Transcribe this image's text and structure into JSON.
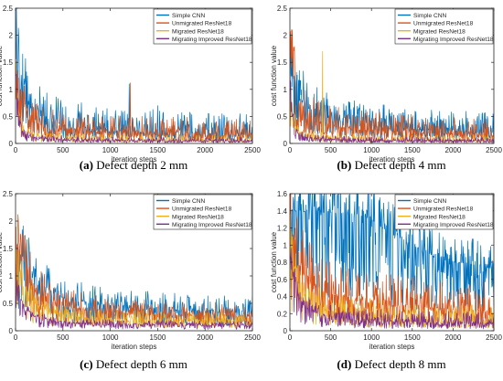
{
  "colors": {
    "simple_cnn": "#0072BD",
    "unmigrated": "#D95319",
    "migrated": "#EDB120",
    "improved": "#7E2F8E"
  },
  "chart_data": [
    {
      "type": "line",
      "panel": "a",
      "caption_label": "(a)",
      "caption_text": " Defect depth 2 mm",
      "xlabel": "iteration steps",
      "ylabel": "cost function value",
      "xlim": [
        0,
        2500
      ],
      "ylim": [
        0,
        2.5
      ],
      "xticks": [
        0,
        500,
        1000,
        1500,
        2000,
        2500
      ],
      "yticks": [
        0,
        0.5,
        1,
        1.5,
        2,
        2.5
      ],
      "ytick_labels": [
        "0",
        "0.5",
        "1",
        "1.5",
        "2",
        "2.5"
      ],
      "legend": "top-right",
      "series": [
        {
          "name": "Simple CNN",
          "values": [
            [
              0,
              1.6
            ],
            [
              50,
              1.2
            ],
            [
              100,
              0.9
            ],
            [
              200,
              0.6
            ],
            [
              300,
              0.45
            ],
            [
              500,
              0.35
            ],
            [
              800,
              0.28
            ],
            [
              1200,
              0.22
            ],
            [
              1600,
              0.2
            ],
            [
              2000,
              0.18
            ],
            [
              2500,
              0.16
            ]
          ],
          "noise": 0.55,
          "spikes": [
            [
              1200,
              1.1
            ],
            [
              1500,
              0.7
            ]
          ]
        },
        {
          "name": "Unmigrated ResNet18",
          "values": [
            [
              0,
              1.5
            ],
            [
              50,
              1.0
            ],
            [
              100,
              0.6
            ],
            [
              200,
              0.4
            ],
            [
              300,
              0.3
            ],
            [
              500,
              0.25
            ],
            [
              1000,
              0.2
            ],
            [
              1500,
              0.17
            ],
            [
              2000,
              0.15
            ],
            [
              2500,
              0.14
            ]
          ],
          "noise": 0.45,
          "spikes": [
            [
              1210,
              1.12
            ]
          ]
        },
        {
          "name": "Migrated ResNet18",
          "values": [
            [
              0,
              1.5
            ],
            [
              30,
              0.6
            ],
            [
              80,
              0.25
            ],
            [
              200,
              0.12
            ],
            [
              500,
              0.08
            ],
            [
              1000,
              0.06
            ],
            [
              2500,
              0.05
            ]
          ],
          "noise": 0.18,
          "spikes": []
        },
        {
          "name": "Migrating Improved ResNet18",
          "values": [
            [
              0,
              1.4
            ],
            [
              30,
              0.5
            ],
            [
              80,
              0.2
            ],
            [
              200,
              0.1
            ],
            [
              500,
              0.07
            ],
            [
              1000,
              0.05
            ],
            [
              2500,
              0.04
            ]
          ],
          "noise": 0.12,
          "spikes": []
        }
      ]
    },
    {
      "type": "line",
      "panel": "b",
      "caption_label": "(b)",
      "caption_text": " Defect depth 4 mm",
      "xlabel": "iteration steps",
      "ylabel": "cost function value",
      "xlim": [
        0,
        2500
      ],
      "ylim": [
        0,
        2.5
      ],
      "xticks": [
        0,
        500,
        1000,
        1500,
        2000,
        2500
      ],
      "yticks": [
        0,
        0.5,
        1,
        1.5,
        2,
        2.5
      ],
      "ytick_labels": [
        "0",
        "0.5",
        "1",
        "1.5",
        "2",
        "2.5"
      ],
      "legend": "top-right",
      "series": [
        {
          "name": "Simple CNN",
          "values": [
            [
              0,
              1.5
            ],
            [
              50,
              1.2
            ],
            [
              100,
              1.0
            ],
            [
              200,
              0.7
            ],
            [
              300,
              0.55
            ],
            [
              500,
              0.45
            ],
            [
              800,
              0.35
            ],
            [
              1200,
              0.3
            ],
            [
              1600,
              0.25
            ],
            [
              2000,
              0.22
            ],
            [
              2500,
              0.2
            ]
          ],
          "noise": 0.5,
          "spikes": []
        },
        {
          "name": "Unmigrated ResNet18",
          "values": [
            [
              0,
              2.0
            ],
            [
              30,
              1.5
            ],
            [
              80,
              0.8
            ],
            [
              200,
              0.5
            ],
            [
              400,
              0.35
            ],
            [
              800,
              0.25
            ],
            [
              1500,
              0.2
            ],
            [
              2500,
              0.15
            ]
          ],
          "noise": 0.45,
          "spikes": [
            [
              30,
              2.1
            ]
          ]
        },
        {
          "name": "Migrated ResNet18",
          "values": [
            [
              0,
              1.4
            ],
            [
              30,
              0.6
            ],
            [
              80,
              0.25
            ],
            [
              200,
              0.12
            ],
            [
              500,
              0.08
            ],
            [
              1000,
              0.06
            ],
            [
              2500,
              0.05
            ]
          ],
          "noise": 0.18,
          "spikes": [
            [
              400,
              1.7
            ]
          ]
        },
        {
          "name": "Migrating Improved ResNet18",
          "values": [
            [
              0,
              1.3
            ],
            [
              30,
              0.5
            ],
            [
              80,
              0.2
            ],
            [
              200,
              0.1
            ],
            [
              500,
              0.07
            ],
            [
              1000,
              0.05
            ],
            [
              2500,
              0.04
            ]
          ],
          "noise": 0.12,
          "spikes": []
        }
      ]
    },
    {
      "type": "line",
      "panel": "c",
      "caption_label": "(c)",
      "caption_text": " Defect depth 6 mm",
      "xlabel": "iteration steps",
      "ylabel": "cost function value",
      "xlim": [
        0,
        2500
      ],
      "ylim": [
        0,
        2.5
      ],
      "xticks": [
        0,
        500,
        1000,
        1500,
        2000,
        2500
      ],
      "yticks": [
        0,
        0.5,
        1,
        1.5,
        2,
        2.5
      ],
      "ytick_labels": [
        "0",
        "0.5",
        "1",
        "1.5",
        "2",
        "2.5"
      ],
      "legend": "top-right",
      "series": [
        {
          "name": "Simple CNN",
          "values": [
            [
              0,
              1.5
            ],
            [
              100,
              1.3
            ],
            [
              200,
              1.0
            ],
            [
              300,
              0.8
            ],
            [
              500,
              0.6
            ],
            [
              800,
              0.5
            ],
            [
              1200,
              0.42
            ],
            [
              1600,
              0.38
            ],
            [
              2000,
              0.35
            ],
            [
              2500,
              0.32
            ]
          ],
          "noise": 0.35,
          "spikes": []
        },
        {
          "name": "Unmigrated ResNet18",
          "values": [
            [
              0,
              1.8
            ],
            [
              50,
              1.5
            ],
            [
              100,
              1.2
            ],
            [
              200,
              0.8
            ],
            [
              400,
              0.5
            ],
            [
              800,
              0.35
            ],
            [
              1500,
              0.28
            ],
            [
              2500,
              0.25
            ]
          ],
          "noise": 0.35,
          "spikes": []
        },
        {
          "name": "Migrated ResNet18",
          "values": [
            [
              0,
              1.3
            ],
            [
              100,
              0.8
            ],
            [
              200,
              0.5
            ],
            [
              400,
              0.3
            ],
            [
              800,
              0.22
            ],
            [
              1500,
              0.2
            ],
            [
              2500,
              0.18
            ]
          ],
          "noise": 0.22,
          "spikes": []
        },
        {
          "name": "Migrating Improved ResNet18",
          "values": [
            [
              0,
              1.1
            ],
            [
              50,
              0.6
            ],
            [
              100,
              0.4
            ],
            [
              200,
              0.25
            ],
            [
              500,
              0.15
            ],
            [
              1000,
              0.12
            ],
            [
              2500,
              0.1
            ]
          ],
          "noise": 0.12,
          "spikes": []
        }
      ]
    },
    {
      "type": "line",
      "panel": "d",
      "caption_label": "(d)",
      "caption_text": " Defect depth 8 mm",
      "xlabel": "iteration steps",
      "ylabel": "cost function value",
      "xlim": [
        0,
        2500
      ],
      "ylim": [
        0,
        1.6
      ],
      "xticks": [
        0,
        500,
        1000,
        1500,
        2000,
        2500
      ],
      "yticks": [
        0,
        0.2,
        0.4,
        0.6,
        0.8,
        1,
        1.2,
        1.4,
        1.6
      ],
      "ytick_labels": [
        "0",
        "0.2",
        "0.4",
        "0.6",
        "0.8",
        "1",
        "1.2",
        "1.4",
        "1.6"
      ],
      "legend": "top-right",
      "series": [
        {
          "name": "Simple CNN",
          "values": [
            [
              0,
              1.38
            ],
            [
              500,
              1.38
            ],
            [
              800,
              1.35
            ],
            [
              1000,
              1.3
            ],
            [
              1200,
              1.15
            ],
            [
              1500,
              1.0
            ],
            [
              1800,
              0.85
            ],
            [
              2000,
              0.8
            ],
            [
              2200,
              0.78
            ],
            [
              2500,
              0.72
            ]
          ],
          "noise": 0.25,
          "spikes": []
        },
        {
          "name": "Unmigrated ResNet18",
          "values": [
            [
              0,
              1.4
            ],
            [
              50,
              1.0
            ],
            [
              100,
              0.8
            ],
            [
              200,
              0.6
            ],
            [
              400,
              0.45
            ],
            [
              800,
              0.35
            ],
            [
              1200,
              0.3
            ],
            [
              1600,
              0.28
            ],
            [
              2000,
              0.25
            ],
            [
              2500,
              0.22
            ]
          ],
          "noise": 0.45,
          "spikes": []
        },
        {
          "name": "Migrated ResNet18",
          "values": [
            [
              0,
              1.1
            ],
            [
              50,
              0.7
            ],
            [
              100,
              0.5
            ],
            [
              200,
              0.35
            ],
            [
              400,
              0.25
            ],
            [
              800,
              0.18
            ],
            [
              1500,
              0.12
            ],
            [
              2500,
              0.1
            ]
          ],
          "noise": 0.3,
          "spikes": []
        },
        {
          "name": "Migrating Improved ResNet18",
          "values": [
            [
              0,
              0.9
            ],
            [
              50,
              0.6
            ],
            [
              100,
              0.4
            ],
            [
              200,
              0.25
            ],
            [
              400,
              0.18
            ],
            [
              800,
              0.12
            ],
            [
              1500,
              0.1
            ],
            [
              2500,
              0.08
            ]
          ],
          "noise": 0.2,
          "spikes": []
        }
      ]
    }
  ]
}
